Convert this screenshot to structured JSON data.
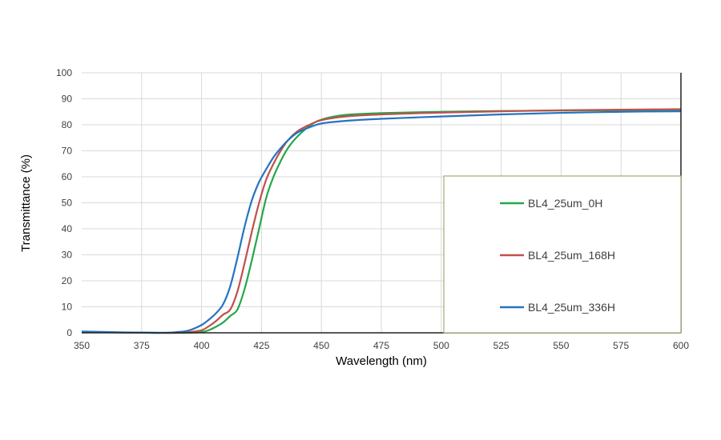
{
  "chart_data": {
    "type": "line",
    "title": "",
    "xlabel": "Wavelength (nm)",
    "ylabel": "Transmittance (%)",
    "xlim": [
      350,
      600
    ],
    "ylim": [
      0,
      100
    ],
    "xticks": [
      350,
      375,
      400,
      425,
      450,
      475,
      500,
      525,
      550,
      575,
      600
    ],
    "yticks": [
      0,
      10,
      20,
      30,
      40,
      50,
      60,
      70,
      80,
      90,
      100
    ],
    "grid": true,
    "legend_position": "lower-right",
    "x": [
      350,
      380,
      390,
      395,
      400,
      403,
      406,
      409,
      412,
      415,
      418,
      421,
      424,
      427,
      430,
      433,
      436,
      440,
      445,
      450,
      460,
      475,
      500,
      525,
      550,
      575,
      600
    ],
    "series": [
      {
        "name": "BL4_25um_0H",
        "color": "#22a74a",
        "values": [
          0.3,
          0,
          0,
          0,
          0.3,
          1,
          2.3,
          4,
          6.5,
          9,
          17,
          28,
          40,
          52,
          60,
          66,
          71,
          75.5,
          79.5,
          82,
          83.8,
          84.5,
          85,
          85.3,
          85.5,
          85.6,
          85.8
        ]
      },
      {
        "name": "BL4_25um_168H",
        "color": "#c0504d",
        "values": [
          0.3,
          0,
          0,
          0.3,
          1,
          2.5,
          4.5,
          7,
          9,
          16,
          27,
          39,
          50,
          59,
          65,
          70,
          74,
          77.5,
          80,
          81.8,
          83.2,
          84,
          84.7,
          85.2,
          85.6,
          85.8,
          86
        ]
      },
      {
        "name": "BL4_25um_336H",
        "color": "#2474c0",
        "values": [
          0.5,
          0,
          0.3,
          1,
          3,
          5,
          7.5,
          11,
          18,
          29,
          41,
          51,
          58,
          63,
          67.5,
          71,
          74,
          77,
          79,
          80.5,
          81.5,
          82.3,
          83.2,
          84,
          84.6,
          85,
          85.2
        ]
      }
    ]
  }
}
